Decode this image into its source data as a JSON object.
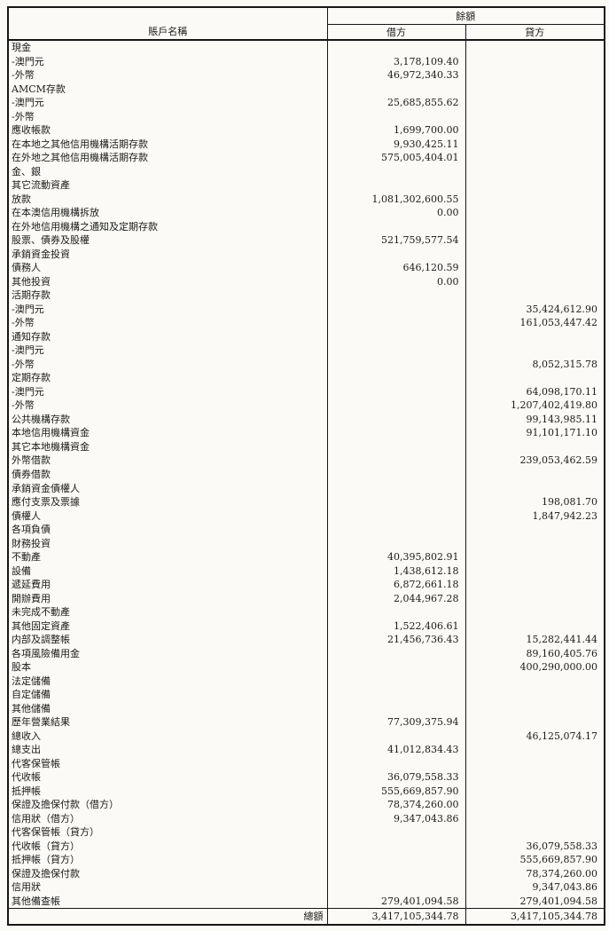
{
  "header": {
    "account_name": "賬戶名稱",
    "balance": "餘額",
    "debit": "借方",
    "credit": "貸方"
  },
  "rows": [
    {
      "label": "現金",
      "debit": "",
      "credit": ""
    },
    {
      "label": "-澳門元",
      "debit": "3,178,109.40",
      "credit": ""
    },
    {
      "label": "-外幣",
      "debit": "46,972,340.33",
      "credit": ""
    },
    {
      "label": "AMCM存款",
      "debit": "",
      "credit": ""
    },
    {
      "label": "-澳門元",
      "debit": "25,685,855.62",
      "credit": ""
    },
    {
      "label": "-外幣",
      "debit": "",
      "credit": ""
    },
    {
      "label": "應收帳款",
      "debit": "1,699,700.00",
      "credit": ""
    },
    {
      "label": "在本地之其他信用機構活期存款",
      "debit": "9,930,425.11",
      "credit": ""
    },
    {
      "label": "在外地之其他信用機構活期存款",
      "debit": "575,005,404.01",
      "credit": ""
    },
    {
      "label": "金、銀",
      "debit": "",
      "credit": ""
    },
    {
      "label": "其它流動資產",
      "debit": "",
      "credit": ""
    },
    {
      "label": "放款",
      "debit": "1,081,302,600.55",
      "credit": ""
    },
    {
      "label": "在本澳信用機構拆放",
      "debit": "0.00",
      "credit": ""
    },
    {
      "label": "在外地信用機構之通知及定期存款",
      "debit": "",
      "credit": ""
    },
    {
      "label": "股票、債券及股權",
      "debit": "521,759,577.54",
      "credit": ""
    },
    {
      "label": "承銷資金投資",
      "debit": "",
      "credit": ""
    },
    {
      "label": "債務人",
      "debit": "646,120.59",
      "credit": ""
    },
    {
      "label": "其他投資",
      "debit": "0.00",
      "credit": ""
    },
    {
      "label": "活期存款",
      "debit": "",
      "credit": ""
    },
    {
      "label": "-澳門元",
      "debit": "",
      "credit": "35,424,612.90"
    },
    {
      "label": "-外幣",
      "debit": "",
      "credit": "161,053,447.42"
    },
    {
      "label": "通知存款",
      "debit": "",
      "credit": ""
    },
    {
      "label": "-澳門元",
      "debit": "",
      "credit": ""
    },
    {
      "label": "-外幣",
      "debit": "",
      "credit": "8,052,315.78"
    },
    {
      "label": "定期存款",
      "debit": "",
      "credit": ""
    },
    {
      "label": "-澳門元",
      "debit": "",
      "credit": "64,098,170.11"
    },
    {
      "label": "-外幣",
      "debit": "",
      "credit": "1,207,402,419.80"
    },
    {
      "label": "公共機構存款",
      "debit": "",
      "credit": "99,143,985.11"
    },
    {
      "label": "本地信用機構資金",
      "debit": "",
      "credit": "91,101,171.10"
    },
    {
      "label": "其它本地機構資金",
      "debit": "",
      "credit": ""
    },
    {
      "label": "外幣借款",
      "debit": "",
      "credit": "239,053,462.59"
    },
    {
      "label": "債券借款",
      "debit": "",
      "credit": ""
    },
    {
      "label": "承銷資金債權人",
      "debit": "",
      "credit": ""
    },
    {
      "label": "應付支票及票據",
      "debit": "",
      "credit": "198,081.70"
    },
    {
      "label": "債權人",
      "debit": "",
      "credit": "1,847,942.23"
    },
    {
      "label": "各項負債",
      "debit": "",
      "credit": ""
    },
    {
      "label": "財務投資",
      "debit": "",
      "credit": ""
    },
    {
      "label": "不動產",
      "debit": "40,395,802.91",
      "credit": ""
    },
    {
      "label": "設備",
      "debit": "1,438,612.18",
      "credit": ""
    },
    {
      "label": "遞延費用",
      "debit": "6,872,661.18",
      "credit": ""
    },
    {
      "label": "開辦費用",
      "debit": "2,044,967.28",
      "credit": ""
    },
    {
      "label": "未完成不動產",
      "debit": "",
      "credit": ""
    },
    {
      "label": "其他固定資產",
      "debit": "1,522,406.61",
      "credit": ""
    },
    {
      "label": "内部及調整帳",
      "debit": "21,456,736.43",
      "credit": "15,282,441.44"
    },
    {
      "label": "各項風險備用金",
      "debit": "",
      "credit": "89,160,405.76"
    },
    {
      "label": "股本",
      "debit": "",
      "credit": "400,290,000.00"
    },
    {
      "label": "法定儲備",
      "debit": "",
      "credit": ""
    },
    {
      "label": "自定儲備",
      "debit": "",
      "credit": ""
    },
    {
      "label": "其他儲備",
      "debit": "",
      "credit": ""
    },
    {
      "label": "歷年營業結果",
      "debit": "77,309,375.94",
      "credit": ""
    },
    {
      "label": "總收入",
      "debit": "",
      "credit": "46,125,074.17"
    },
    {
      "label": "總支出",
      "debit": "41,012,834.43",
      "credit": ""
    },
    {
      "label": "代客保管帳",
      "debit": "",
      "credit": ""
    },
    {
      "label": "代收帳",
      "debit": "36,079,558.33",
      "credit": ""
    },
    {
      "label": "抵押帳",
      "debit": "555,669,857.90",
      "credit": ""
    },
    {
      "label": "保證及擔保付款（借方）",
      "debit": "78,374,260.00",
      "credit": ""
    },
    {
      "label": "信用狀（借方）",
      "debit": "9,347,043.86",
      "credit": ""
    },
    {
      "label": "代客保管帳（貸方）",
      "debit": "",
      "credit": ""
    },
    {
      "label": "代收帳（貸方）",
      "debit": "",
      "credit": "36,079,558.33"
    },
    {
      "label": "抵押帳（貸方）",
      "debit": "",
      "credit": "555,669,857.90"
    },
    {
      "label": "保證及擔保付款",
      "debit": "",
      "credit": "78,374,260.00"
    },
    {
      "label": "信用狀",
      "debit": "",
      "credit": "9,347,043.86"
    },
    {
      "label": "其他備查帳",
      "debit": "279,401,094.58",
      "credit": "279,401,094.58"
    }
  ],
  "total": {
    "label": "總額",
    "debit": "3,417,105,344.78",
    "credit": "3,417,105,344.78"
  }
}
